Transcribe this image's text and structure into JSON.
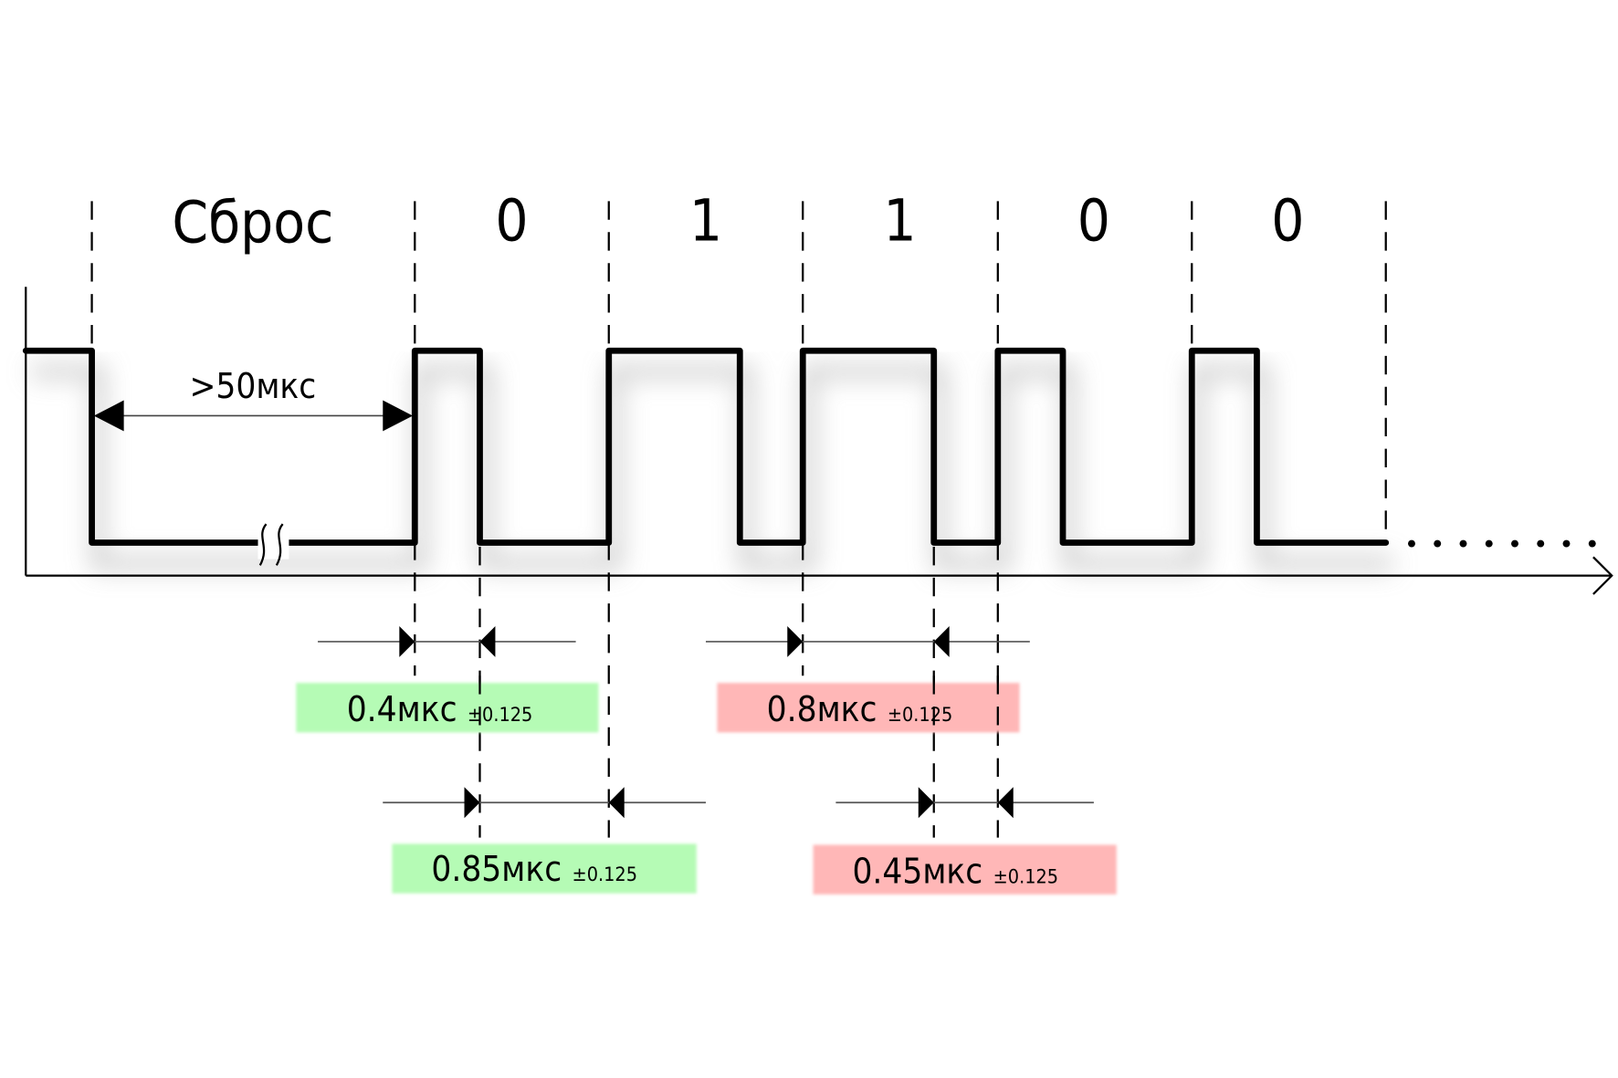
{
  "title_labels": {
    "reset": "Сброс",
    "bits": [
      "0",
      "1",
      "1",
      "0",
      "0"
    ]
  },
  "reset_duration": ">50мкс",
  "timings": [
    {
      "value": "0.4мкс",
      "tolerance": "±0.125",
      "meaning": "bit 0 high",
      "color": "#b5fbb5"
    },
    {
      "value": "0.8мкс",
      "tolerance": "±0.125",
      "meaning": "bit 1 high",
      "color": "#ffb7b7"
    },
    {
      "value": "0.85мкс",
      "tolerance": "±0.125",
      "meaning": "bit 0 low",
      "color": "#b5fbb5"
    },
    {
      "value": "0.45мкс",
      "tolerance": "±0.125",
      "meaning": "bit 1 low",
      "color": "#ffb7b7"
    }
  ]
}
